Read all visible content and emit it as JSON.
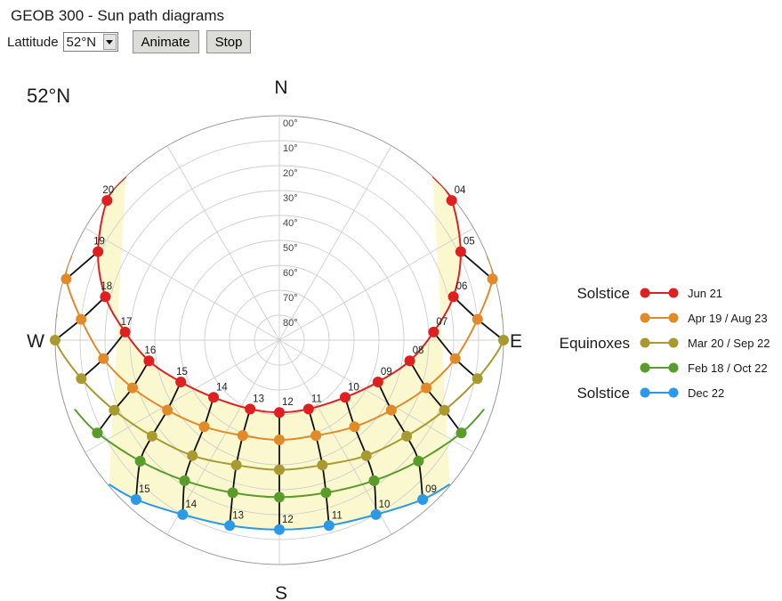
{
  "app_title": "GEOB 300 - Sun path diagrams",
  "controls": {
    "latitude_label": "Lattitude",
    "latitude_value": "52°N",
    "animate_label": "Animate",
    "stop_label": "Stop"
  },
  "chart_data": {
    "type": "polar-sun-path",
    "title": "52°N",
    "directions": {
      "north": "N",
      "south": "S",
      "east": "E",
      "west": "W"
    },
    "altitude_rings": [
      "00°",
      "10°",
      "20°",
      "30°",
      "40°",
      "50°",
      "60°",
      "70°",
      "80°"
    ],
    "azimuth_spokes_deg": [
      0,
      30,
      60,
      90,
      120,
      150,
      180,
      210,
      240,
      270,
      300,
      330
    ],
    "series": [
      {
        "group": "Solstice",
        "name": "Jun 21",
        "color": "#e02020",
        "points": [
          {
            "hour": 4,
            "az": 51,
            "alt": 1
          },
          {
            "hour": 5,
            "az": 64,
            "alt": 9
          },
          {
            "hour": 6,
            "az": 76,
            "alt": 18
          },
          {
            "hour": 7,
            "az": 87,
            "alt": 28
          },
          {
            "hour": 8,
            "az": 99,
            "alt": 37
          },
          {
            "hour": 9,
            "az": 113,
            "alt": 47
          },
          {
            "hour": 10,
            "az": 131,
            "alt": 55
          },
          {
            "hour": 11,
            "az": 157,
            "alt": 60
          },
          {
            "hour": 12,
            "az": 180,
            "alt": 61
          },
          {
            "hour": 13,
            "az": 203,
            "alt": 60
          },
          {
            "hour": 14,
            "az": 229,
            "alt": 55
          },
          {
            "hour": 15,
            "az": 247,
            "alt": 47
          },
          {
            "hour": 16,
            "az": 261,
            "alt": 37
          },
          {
            "hour": 17,
            "az": 273,
            "alt": 28
          },
          {
            "hour": 18,
            "az": 284,
            "alt": 18
          },
          {
            "hour": 19,
            "az": 296,
            "alt": 9
          },
          {
            "hour": 20,
            "az": 309,
            "alt": 1
          }
        ]
      },
      {
        "group": "",
        "name": "Apr 19 / Aug 23",
        "color": "#e08a2a",
        "points": [
          {
            "hour": 5,
            "az": 74,
            "alt": 1
          },
          {
            "hour": 6,
            "az": 84,
            "alt": 10
          },
          {
            "hour": 7,
            "az": 96,
            "alt": 19
          },
          {
            "hour": 8,
            "az": 108,
            "alt": 28
          },
          {
            "hour": 9,
            "az": 122,
            "alt": 37
          },
          {
            "hour": 10,
            "az": 139,
            "alt": 44
          },
          {
            "hour": 11,
            "az": 159,
            "alt": 49
          },
          {
            "hour": 12,
            "az": 180,
            "alt": 50
          },
          {
            "hour": 13,
            "az": 201,
            "alt": 49
          },
          {
            "hour": 14,
            "az": 221,
            "alt": 44
          },
          {
            "hour": 15,
            "az": 238,
            "alt": 37
          },
          {
            "hour": 16,
            "az": 252,
            "alt": 28
          },
          {
            "hour": 17,
            "az": 264,
            "alt": 19
          },
          {
            "hour": 18,
            "az": 276,
            "alt": 10
          },
          {
            "hour": 19,
            "az": 286,
            "alt": 1
          }
        ]
      },
      {
        "group": "Equinoxes",
        "name": "Mar 20 / Sep 22",
        "color": "#a89a30",
        "points": [
          {
            "hour": 6,
            "az": 90,
            "alt": 0
          },
          {
            "hour": 7,
            "az": 101,
            "alt": 9
          },
          {
            "hour": 8,
            "az": 113,
            "alt": 18
          },
          {
            "hour": 9,
            "az": 127,
            "alt": 26
          },
          {
            "hour": 10,
            "az": 143,
            "alt": 32
          },
          {
            "hour": 11,
            "az": 161,
            "alt": 37
          },
          {
            "hour": 12,
            "az": 180,
            "alt": 38
          },
          {
            "hour": 13,
            "az": 199,
            "alt": 37
          },
          {
            "hour": 14,
            "az": 217,
            "alt": 32
          },
          {
            "hour": 15,
            "az": 233,
            "alt": 26
          },
          {
            "hour": 16,
            "az": 247,
            "alt": 18
          },
          {
            "hour": 17,
            "az": 259,
            "alt": 9
          },
          {
            "hour": 18,
            "az": 270,
            "alt": 0
          }
        ]
      },
      {
        "group": "",
        "name": "Feb 18 / Oct 22",
        "color": "#5a9c2c",
        "points": [
          {
            "hour": 8,
            "az": 117,
            "alt": 8
          },
          {
            "hour": 9,
            "az": 131,
            "alt": 16
          },
          {
            "hour": 10,
            "az": 146,
            "alt": 22
          },
          {
            "hour": 11,
            "az": 163,
            "alt": 26
          },
          {
            "hour": 12,
            "az": 180,
            "alt": 27
          },
          {
            "hour": 13,
            "az": 197,
            "alt": 26
          },
          {
            "hour": 14,
            "az": 214,
            "alt": 22
          },
          {
            "hour": 15,
            "az": 229,
            "alt": 16
          },
          {
            "hour": 16,
            "az": 243,
            "alt": 8
          }
        ]
      },
      {
        "group": "Solstice",
        "name": "Dec 22",
        "color": "#2a9ae8",
        "points": [
          {
            "hour": 9,
            "az": 138,
            "alt": 4
          },
          {
            "hour": 10,
            "az": 151,
            "alt": 10
          },
          {
            "hour": 11,
            "az": 165,
            "alt": 13
          },
          {
            "hour": 12,
            "az": 180,
            "alt": 14
          },
          {
            "hour": 13,
            "az": 195,
            "alt": 13
          },
          {
            "hour": 14,
            "az": 209,
            "alt": 10
          },
          {
            "hour": 15,
            "az": 222,
            "alt": 4
          }
        ]
      }
    ],
    "hour_labels_shown": {
      "Jun 21": [
        4,
        5,
        6,
        7,
        8,
        9,
        10,
        11,
        12,
        13,
        14,
        15,
        16,
        17,
        18,
        19,
        20
      ],
      "Dec 22": [
        9,
        10,
        11,
        12,
        13,
        14,
        15
      ]
    }
  }
}
